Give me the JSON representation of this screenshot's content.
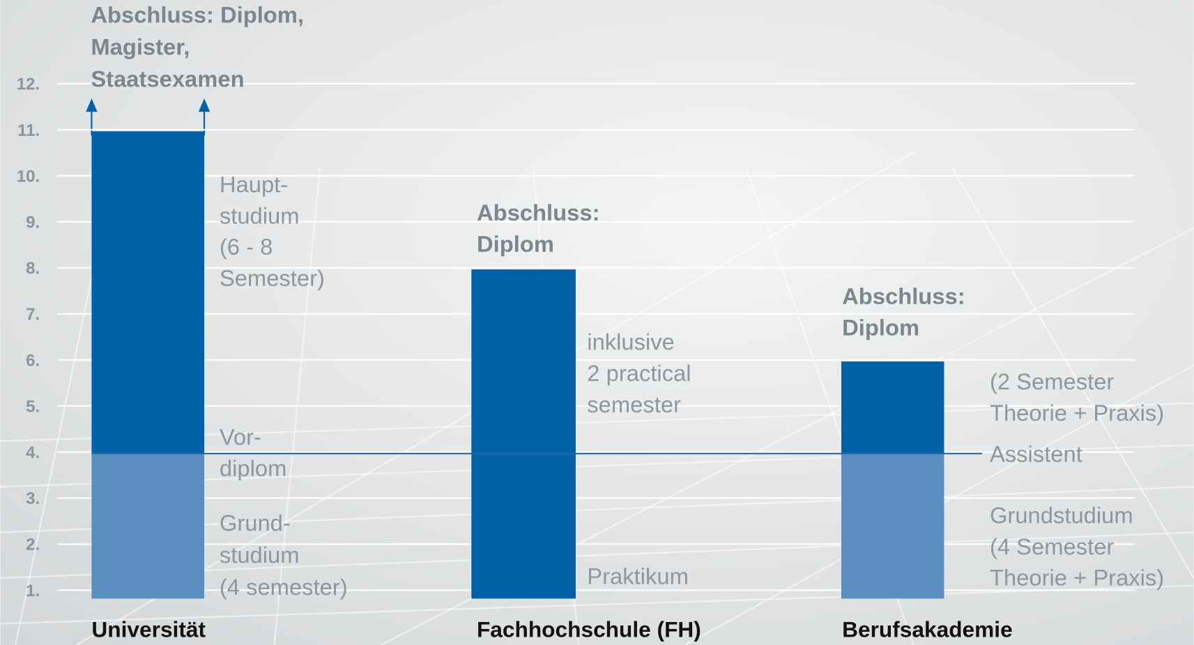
{
  "chart_data": {
    "type": "bar",
    "categories": [
      "Universität",
      "Fachhochschule (FH)",
      "Berufsakademie"
    ],
    "series": [
      {
        "color": "#5a8ec1",
        "values": [
          4,
          null,
          4
        ]
      },
      {
        "color": "#0062a6",
        "values": [
          7,
          8,
          2
        ]
      }
    ],
    "ylim": [
      0.85,
      13
    ],
    "yticks": [
      {
        "value": 1,
        "label": "1."
      },
      {
        "value": 2,
        "label": "2."
      },
      {
        "value": 3,
        "label": "3."
      },
      {
        "value": 4,
        "label": "4."
      },
      {
        "value": 5,
        "label": "5."
      },
      {
        "value": 6,
        "label": "6."
      },
      {
        "value": 7,
        "label": "7."
      },
      {
        "value": 8,
        "label": "8."
      },
      {
        "value": 9,
        "label": "9."
      },
      {
        "value": 10,
        "label": "10."
      },
      {
        "value": 11,
        "label": "11."
      },
      {
        "value": 12,
        "label": "12."
      }
    ],
    "grid": true,
    "reference_line": 4,
    "annotations": [
      {
        "bold": true,
        "lines": [
          "Abschluss: Diplom,",
          "Magister,",
          "Staatsexamen"
        ]
      },
      {
        "bold": false,
        "lines": [
          "Haupt-",
          "studium",
          "(6 - 8",
          "Semester)"
        ]
      },
      {
        "bold": false,
        "lines": [
          "Vor-",
          "diplom"
        ]
      },
      {
        "bold": false,
        "lines": [
          "Grund-",
          "studium",
          "(4 semester)"
        ]
      },
      {
        "bold": true,
        "lines": [
          "Abschluss:",
          "Diplom"
        ]
      },
      {
        "bold": false,
        "lines": [
          "inklusive",
          "2 practical",
          "semester"
        ]
      },
      {
        "bold": false,
        "lines": [
          "Praktikum"
        ]
      },
      {
        "bold": true,
        "lines": [
          "Abschluss:",
          "Diplom"
        ]
      },
      {
        "bold": false,
        "lines": [
          "(2 Semester",
          "Theorie + Praxis)"
        ]
      },
      {
        "bold": false,
        "lines": [
          "Assistent"
        ]
      },
      {
        "bold": false,
        "lines": [
          "Grundstudium",
          "(4 Semester",
          "Theorie + Praxis)"
        ]
      }
    ]
  }
}
